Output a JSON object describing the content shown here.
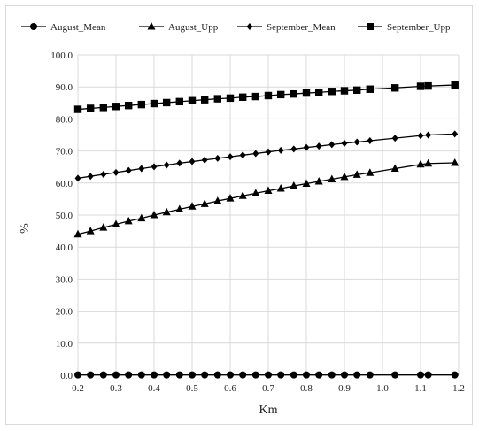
{
  "chart_data": {
    "type": "line",
    "xlabel": "Km",
    "ylabel": "%",
    "xlim": [
      0.2,
      1.2
    ],
    "ylim": [
      0,
      100
    ],
    "x_ticks": [
      "0.2",
      "0.3",
      "0.4",
      "0.5",
      "0.6",
      "0.7",
      "0.8",
      "0.9",
      "1.0",
      "1.1",
      "1.2"
    ],
    "y_ticks": [
      "0.0",
      "10.0",
      "20.0",
      "30.0",
      "40.0",
      "50.0",
      "60.0",
      "70.0",
      "80.0",
      "90.0",
      "100.0"
    ],
    "grid": "vertical-and-horizontal",
    "legend_position": "top",
    "x": [
      0.2,
      0.233,
      0.267,
      0.3,
      0.333,
      0.367,
      0.4,
      0.433,
      0.467,
      0.5,
      0.533,
      0.567,
      0.6,
      0.633,
      0.667,
      0.7,
      0.733,
      0.767,
      0.8,
      0.833,
      0.867,
      0.9,
      0.933,
      0.967,
      1.033,
      1.1,
      1.12,
      1.19
    ],
    "series": [
      {
        "name": "August_Mean",
        "marker": "circle",
        "values": [
          0.1,
          0.1,
          0.1,
          0.1,
          0.1,
          0.1,
          0.1,
          0.1,
          0.1,
          0.1,
          0.1,
          0.1,
          0.1,
          0.1,
          0.1,
          0.1,
          0.1,
          0.1,
          0.1,
          0.1,
          0.1,
          0.1,
          0.1,
          0.1,
          0.1,
          0.1,
          0.1,
          0.1
        ]
      },
      {
        "name": "August_Upp",
        "marker": "triangle",
        "values": [
          44.0,
          45.0,
          46.1,
          47.1,
          48.1,
          49.0,
          50.0,
          50.9,
          51.8,
          52.7,
          53.5,
          54.4,
          55.2,
          56.0,
          56.8,
          57.6,
          58.3,
          59.1,
          59.8,
          60.5,
          61.2,
          61.9,
          62.6,
          63.2,
          64.5,
          65.8,
          66.1,
          66.3
        ]
      },
      {
        "name": "September_Mean",
        "marker": "diamond",
        "values": [
          61.5,
          62.1,
          62.7,
          63.3,
          63.9,
          64.5,
          65.1,
          65.6,
          66.2,
          66.7,
          67.2,
          67.7,
          68.2,
          68.7,
          69.2,
          69.7,
          70.2,
          70.6,
          71.1,
          71.5,
          72.0,
          72.4,
          72.8,
          73.2,
          74.0,
          74.8,
          75.0,
          75.3
        ]
      },
      {
        "name": "September_Upp",
        "marker": "square",
        "values": [
          83.0,
          83.3,
          83.6,
          83.9,
          84.2,
          84.5,
          84.8,
          85.1,
          85.4,
          85.7,
          86.0,
          86.3,
          86.5,
          86.8,
          87.0,
          87.3,
          87.6,
          87.8,
          88.1,
          88.3,
          88.6,
          88.8,
          89.0,
          89.3,
          89.7,
          90.2,
          90.3,
          90.6
        ]
      }
    ]
  }
}
